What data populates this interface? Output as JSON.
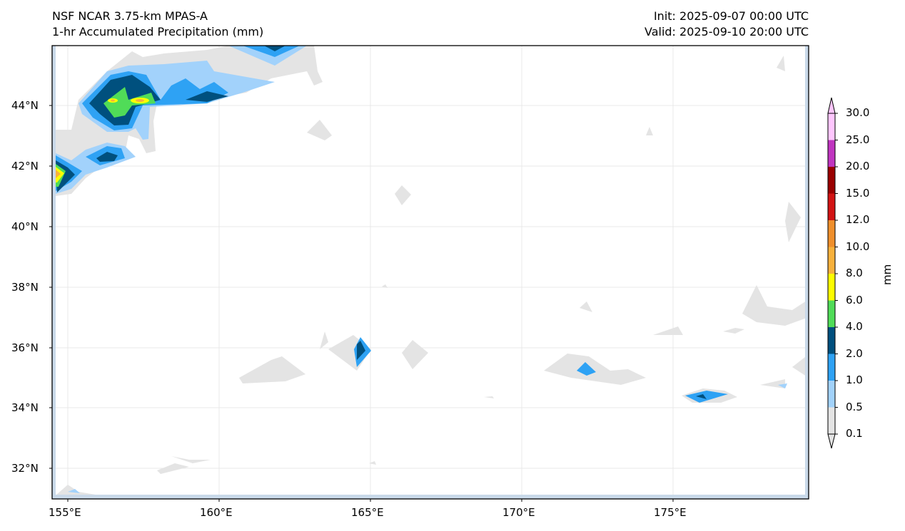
{
  "header": {
    "model": "NSF NCAR 3.75-km MPAS-A",
    "field": "1-hr Accumulated Precipitation (mm)",
    "init": "Init: 2025-09-07 00:00 UTC",
    "valid": "Valid: 2025-09-10 20:00 UTC"
  },
  "axes": {
    "lon_ticks": [
      "155°E",
      "160°E",
      "165°E",
      "170°E",
      "175°E"
    ],
    "lat_ticks": [
      "44°N",
      "42°N",
      "40°N",
      "38°N",
      "36°N",
      "34°N",
      "32°N"
    ],
    "extent": {
      "lon": [
        154.5,
        179.5
      ],
      "lat": [
        31,
        46
      ]
    }
  },
  "colorbar": {
    "label": "mm",
    "levels": [
      "0.1",
      "0.5",
      "1.0",
      "2.0",
      "4.0",
      "6.0",
      "8.0",
      "10.0",
      "12.0",
      "15.0",
      "20.0",
      "25.0",
      "30.0"
    ],
    "colors": [
      "#e4e4e4",
      "#a2d2fb",
      "#2ea2f4",
      "#00507e",
      "#50dc58",
      "#fdfd00",
      "#f7b13c",
      "#ef8f2c",
      "#d21414",
      "#9a0000",
      "#c035c0",
      "#ffc6ff"
    ]
  }
}
